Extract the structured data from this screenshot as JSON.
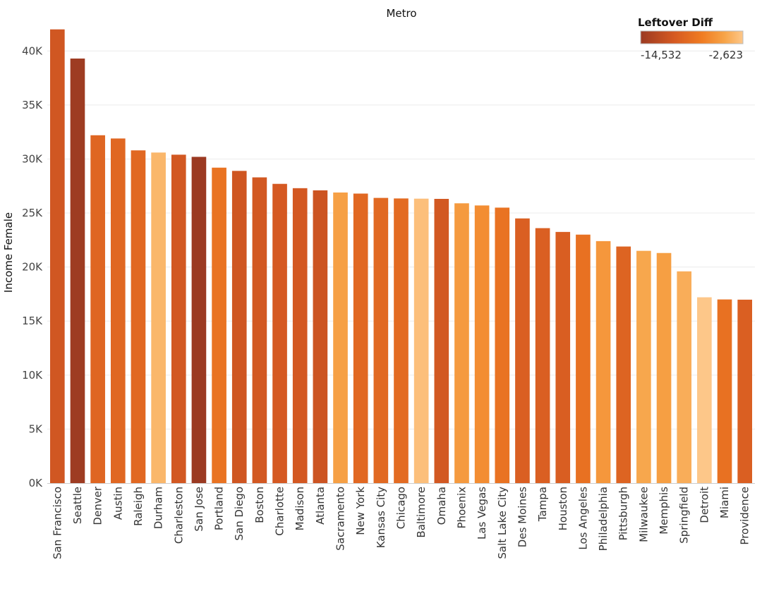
{
  "chart_data": {
    "type": "bar",
    "title": "Metro",
    "xlabel": "",
    "ylabel": "Income Female",
    "ylim": [
      0,
      42500
    ],
    "grid": true,
    "y_ticks": [
      {
        "value": 0,
        "label": "0K"
      },
      {
        "value": 5000,
        "label": "5K"
      },
      {
        "value": 10000,
        "label": "10K"
      },
      {
        "value": 15000,
        "label": "15K"
      },
      {
        "value": 20000,
        "label": "20K"
      },
      {
        "value": 25000,
        "label": "25K"
      },
      {
        "value": 30000,
        "label": "30K"
      },
      {
        "value": 35000,
        "label": "35K"
      },
      {
        "value": 40000,
        "label": "40K"
      }
    ],
    "categories": [
      "San Francisco",
      "Seattle",
      "Denver",
      "Austin",
      "Raleigh",
      "Durham",
      "Charleston",
      "San Jose",
      "Portland",
      "San Diego",
      "Boston",
      "Charlotte",
      "Madison",
      "Atlanta",
      "Sacramento",
      "New York",
      "Kansas City",
      "Chicago",
      "Baltimore",
      "Omaha",
      "Phoenix",
      "Las Vegas",
      "Salt Lake City",
      "Des Moines",
      "Tampa",
      "Houston",
      "Los Angeles",
      "Philadelphia",
      "Pittsburgh",
      "Milwaukee",
      "Memphis",
      "Springfield",
      "Detroit",
      "Miami",
      "Providence"
    ],
    "values": [
      42000,
      39300,
      32200,
      31900,
      30800,
      30600,
      30400,
      30200,
      29200,
      28900,
      28300,
      27700,
      27300,
      27100,
      26900,
      26800,
      26400,
      26350,
      26330,
      26310,
      25900,
      25700,
      25500,
      24500,
      23600,
      23250,
      23000,
      22400,
      21900,
      21500,
      21300,
      19600,
      17200,
      17000,
      16980
    ],
    "color_values": [
      -11000,
      -14300,
      -9500,
      -9400,
      -9300,
      -3600,
      -10900,
      -14532,
      -8200,
      -11100,
      -10900,
      -10700,
      -10800,
      -11300,
      -5000,
      -9300,
      -9200,
      -9000,
      -3100,
      -10900,
      -5400,
      -6300,
      -8200,
      -10100,
      -10100,
      -10200,
      -8400,
      -5600,
      -9700,
      -4600,
      -5100,
      -4200,
      -2623,
      -8400,
      -10100
    ],
    "legend": {
      "title": "Leftover Diff",
      "min_label": "-14,532",
      "max_label": "-2,623",
      "min_value": -14532,
      "max_value": -2623,
      "placement": "top-right"
    },
    "colors": {
      "low": "#9b3a22",
      "mid_low": "#d65a22",
      "mid": "#f07c22",
      "mid_high": "#f7a448",
      "high": "#fdc789",
      "grid": "#ececec",
      "axis": "#cccccc"
    }
  }
}
